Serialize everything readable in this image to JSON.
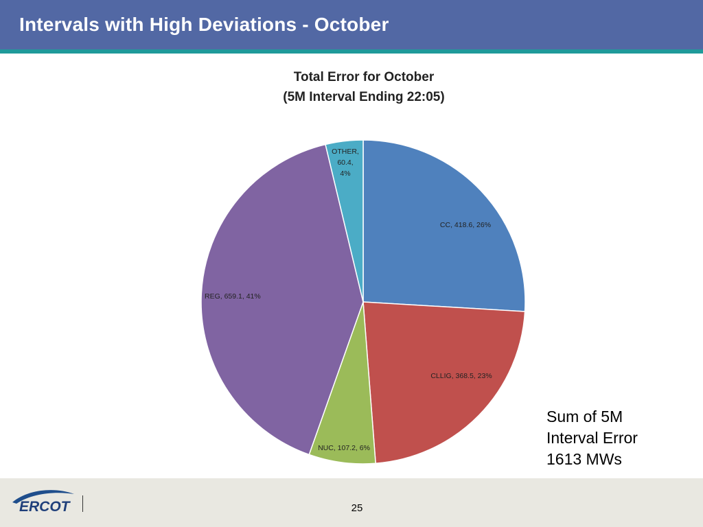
{
  "slide": {
    "title": "Intervals with High Deviations - October",
    "page_number": "25"
  },
  "note": {
    "line1": "Sum of 5M",
    "line2": "Interval Error",
    "line3": "1613 MWs"
  },
  "logo": {
    "text": "ERCOT"
  },
  "chart_data": {
    "type": "pie",
    "title_line1": "Total Error for October",
    "title_line2": "(5M Interval Ending 22:05)",
    "slices": [
      {
        "name": "CC",
        "value": 418.6,
        "percent": "26%",
        "label": "CC, 418.6, 26%",
        "color": "#4f81bd"
      },
      {
        "name": "CLLIG",
        "value": 368.5,
        "percent": "23%",
        "label": "CLLIG, 368.5, 23%",
        "color": "#c0504d"
      },
      {
        "name": "NUC",
        "value": 107.2,
        "percent": "6%",
        "label": "NUC, 107.2, 6%",
        "color": "#9bbb59"
      },
      {
        "name": "REG",
        "value": 659.1,
        "percent": "41%",
        "label": "REG, 659.1, 41%",
        "color": "#8064a2"
      },
      {
        "name": "OTHER",
        "value": 60.4,
        "percent": "4%",
        "label": "OTHER,\n60.4,\n4%",
        "color": "#4bacc6"
      }
    ]
  }
}
